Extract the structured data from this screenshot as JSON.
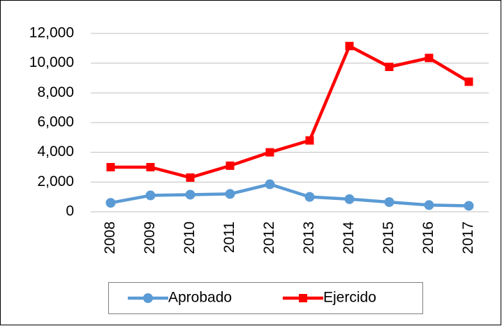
{
  "chart_data": {
    "type": "line",
    "categories": [
      "2008",
      "2009",
      "2010",
      "2011",
      "2012",
      "2013",
      "2014",
      "2015",
      "2016",
      "2017"
    ],
    "series": [
      {
        "name": "Aprobado",
        "color": "#5b9bd5",
        "marker": "circle",
        "values": [
          600,
          1100,
          1150,
          1200,
          1850,
          1000,
          850,
          650,
          450,
          400
        ]
      },
      {
        "name": "Ejercido",
        "color": "#ff0000",
        "marker": "square",
        "values": [
          3000,
          3000,
          2300,
          3100,
          4000,
          4800,
          11150,
          9750,
          10350,
          8750
        ]
      }
    ],
    "ylim": [
      0,
      12000
    ],
    "yticks": [
      0,
      {
        "value": 2000,
        "label": "2,000"
      },
      {
        "value": 4000,
        "label": "4,000"
      },
      {
        "value": 6000,
        "label": "6,000"
      },
      {
        "value": 8000,
        "label": "8,000"
      },
      {
        "value": 10000,
        "label": "10,000"
      },
      {
        "value": 12000,
        "label": "12,000"
      }
    ],
    "grid": true,
    "legend": "bottom"
  }
}
